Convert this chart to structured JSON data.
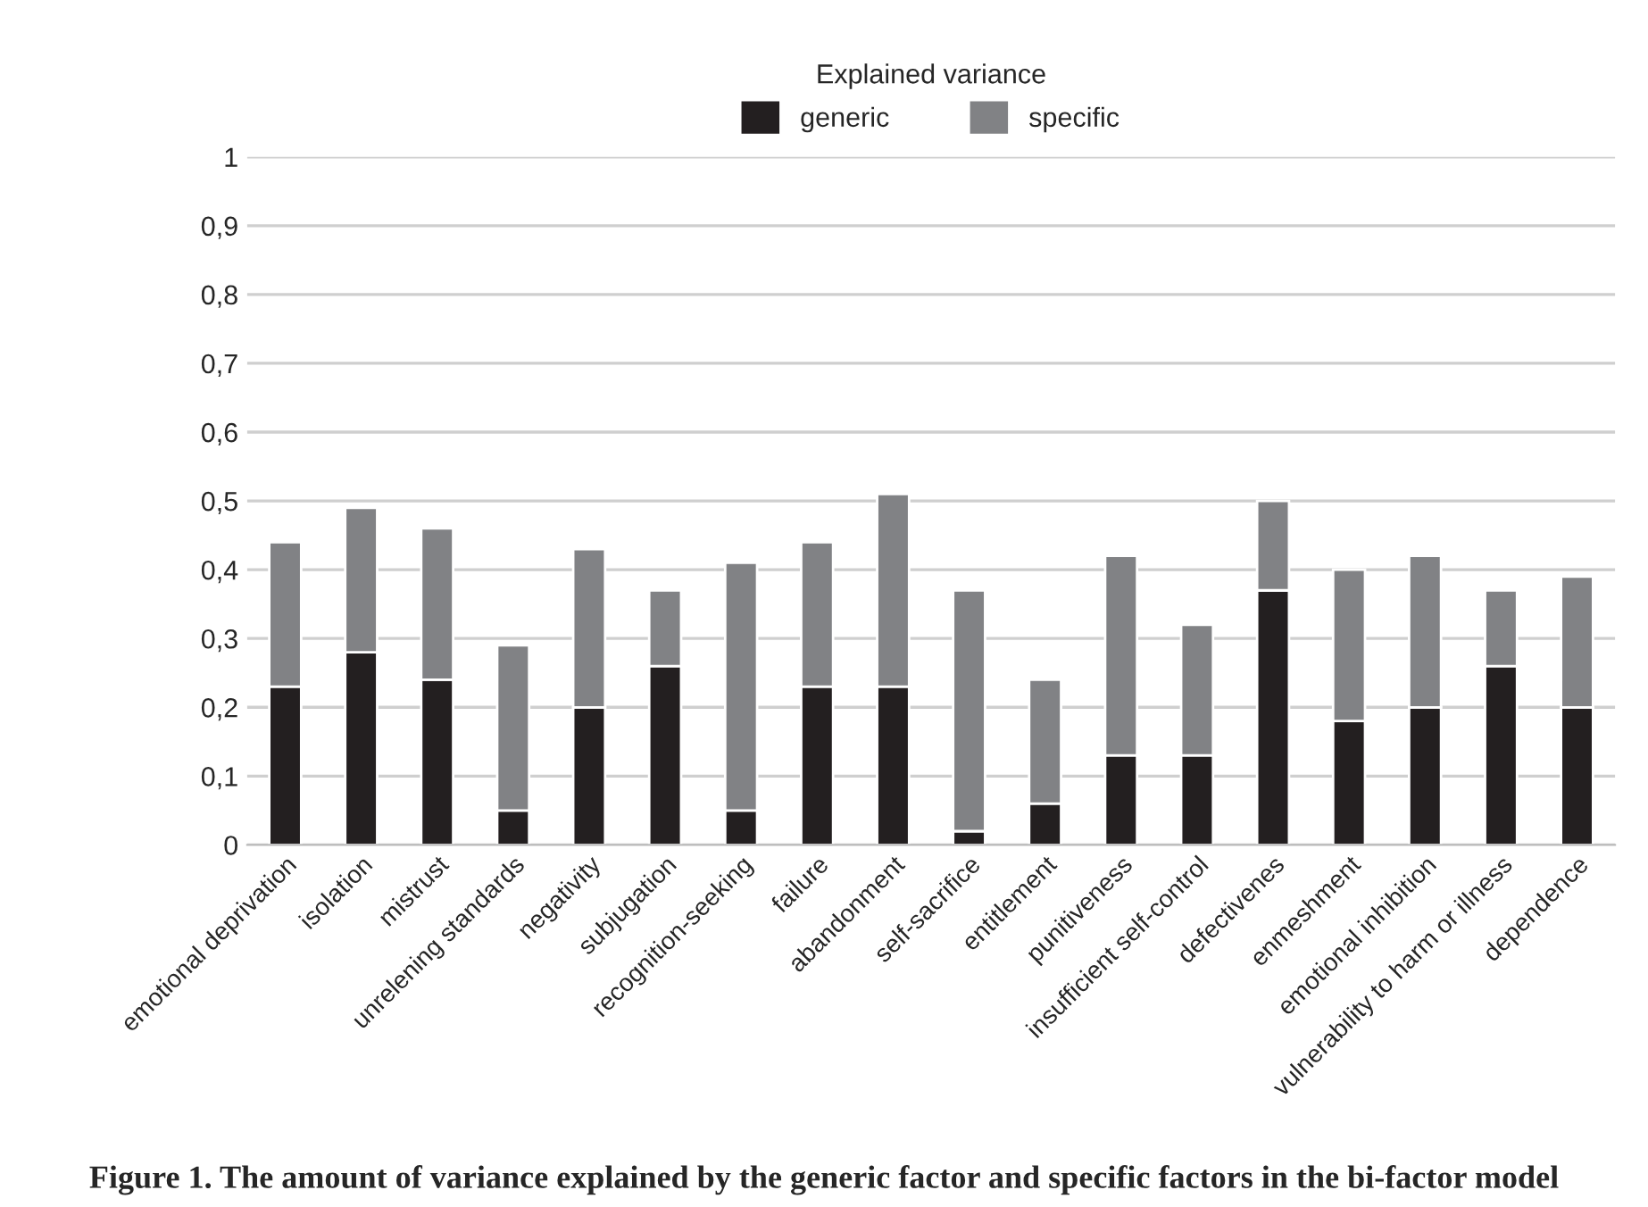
{
  "chart_data": {
    "type": "bar",
    "stacked": true,
    "title": "Figure 1. The amount of variance explained by the generic factor and specific factors in the bi-factor model",
    "legend_title": "Explained variance",
    "categories": [
      "emotional deprivation",
      "isolation",
      "mistrust",
      "unrelening standards",
      "negativity",
      "subjugation",
      "recognition-seeking",
      "failure",
      "abandonment",
      "self-sacrifice",
      "entitlement",
      "punitiveness",
      "insufficient self-control",
      "defectivenes",
      "enmeshment",
      "emotional inhibition",
      "vulnerability to harm or illness",
      "dependence"
    ],
    "series": [
      {
        "name": "generic",
        "color": "#231f20",
        "values": [
          0.23,
          0.28,
          0.24,
          0.05,
          0.2,
          0.26,
          0.05,
          0.23,
          0.23,
          0.02,
          0.06,
          0.13,
          0.13,
          0.37,
          0.18,
          0.2,
          0.26,
          0.2
        ]
      },
      {
        "name": "specific",
        "color": "#818285",
        "values": [
          0.21,
          0.21,
          0.22,
          0.24,
          0.23,
          0.11,
          0.36,
          0.21,
          0.28,
          0.35,
          0.18,
          0.29,
          0.19,
          0.13,
          0.22,
          0.22,
          0.11,
          0.19
        ]
      }
    ],
    "ylim": [
      0,
      1
    ],
    "yticks": [
      0,
      {
        "value": 0.1,
        "label": "0,1"
      },
      {
        "value": 0.2,
        "label": "0,2"
      },
      {
        "value": 0.3,
        "label": "0,3"
      },
      {
        "value": 0.4,
        "label": "0,4"
      },
      {
        "value": 0.5,
        "label": "0,5"
      },
      {
        "value": 0.6,
        "label": "0,6"
      },
      {
        "value": 0.7,
        "label": "0,7"
      },
      {
        "value": 0.8,
        "label": "0,8"
      },
      {
        "value": 0.9,
        "label": "0,9"
      },
      1
    ],
    "grid": "y",
    "legend": "top"
  }
}
